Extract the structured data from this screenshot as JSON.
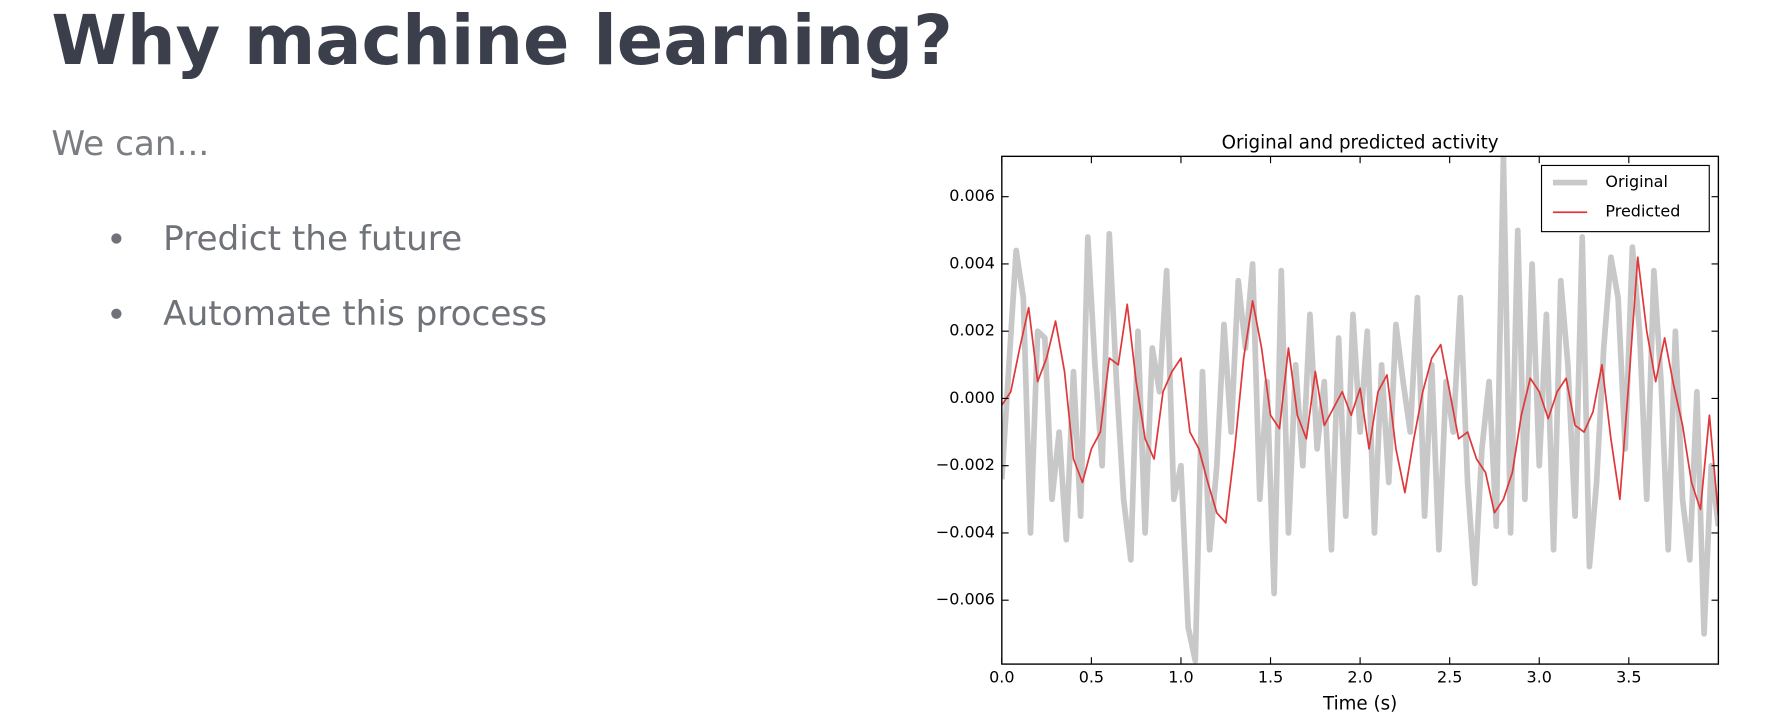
{
  "slide": {
    "title": "Why machine learning?",
    "lead": "We can...",
    "bullets": [
      "Predict the future",
      "Automate this process"
    ]
  },
  "chart_data": {
    "type": "line",
    "title": "Original and predicted activity",
    "x_label": "Time (s)",
    "xlim": [
      0,
      4.0
    ],
    "ylim": [
      -0.0079,
      0.0072
    ],
    "xticks": [
      {
        "value": 0,
        "label": "0.0"
      },
      {
        "value": 0.5,
        "label": "0.5"
      },
      {
        "value": 1,
        "label": "1.0"
      },
      {
        "value": 1.5,
        "label": "1.5"
      },
      {
        "value": 2,
        "label": "2.0"
      },
      {
        "value": 2.5,
        "label": "2.5"
      },
      {
        "value": 3,
        "label": "3.0"
      },
      {
        "value": 3.5,
        "label": "3.5"
      }
    ],
    "yticks": [
      {
        "value": -0.006,
        "label": "−0.006"
      },
      {
        "value": -0.004,
        "label": "−0.004"
      },
      {
        "value": -0.002,
        "label": "−0.002"
      },
      {
        "value": 0,
        "label": "0.000"
      },
      {
        "value": 0.002,
        "label": "0.002"
      },
      {
        "value": 0.004,
        "label": "0.004"
      },
      {
        "value": 0.006,
        "label": "0.006"
      }
    ],
    "legend": "upper right",
    "grid": false,
    "series": [
      {
        "name": "Original",
        "color": "#c8c8c8",
        "width": 5,
        "x": [
          0,
          0.04,
          0.08,
          0.12,
          0.16,
          0.2,
          0.24,
          0.28,
          0.32,
          0.36,
          0.4,
          0.44,
          0.48,
          0.52,
          0.56,
          0.6,
          0.64,
          0.68,
          0.72,
          0.76,
          0.8,
          0.84,
          0.88,
          0.92,
          0.96,
          1,
          1.04,
          1.08,
          1.12,
          1.16,
          1.2,
          1.24,
          1.28,
          1.32,
          1.36,
          1.4,
          1.44,
          1.48,
          1.52,
          1.56,
          1.6,
          1.64,
          1.68,
          1.72,
          1.76,
          1.8,
          1.84,
          1.88,
          1.92,
          1.96,
          2,
          2.04,
          2.08,
          2.12,
          2.16,
          2.2,
          2.24,
          2.28,
          2.32,
          2.36,
          2.4,
          2.44,
          2.48,
          2.52,
          2.56,
          2.6,
          2.64,
          2.68,
          2.72,
          2.76,
          2.8,
          2.84,
          2.88,
          2.92,
          2.96,
          3,
          3.04,
          3.08,
          3.12,
          3.16,
          3.2,
          3.24,
          3.28,
          3.32,
          3.36,
          3.4,
          3.44,
          3.48,
          3.52,
          3.56,
          3.6,
          3.64,
          3.68,
          3.72,
          3.76,
          3.8,
          3.84,
          3.88,
          3.92,
          3.96,
          4
        ],
        "values": [
          -0.0024,
          0.001,
          0.0044,
          0.003,
          -0.004,
          0.002,
          0.0018,
          -0.003,
          -0.001,
          -0.0042,
          0.0008,
          -0.0035,
          0.0048,
          0.001,
          -0.002,
          0.0049,
          0.0005,
          -0.003,
          -0.0048,
          0.002,
          -0.004,
          0.0015,
          0.0002,
          0.0038,
          -0.003,
          -0.002,
          -0.0068,
          -0.0078,
          0.0008,
          -0.0045,
          -0.002,
          0.0022,
          -0.001,
          0.0035,
          0.0015,
          0.004,
          -0.003,
          0.0005,
          -0.0058,
          0.0038,
          -0.004,
          0.001,
          -0.002,
          0.0025,
          -0.0015,
          0.0005,
          -0.0045,
          0.0018,
          -0.0035,
          0.0025,
          -0.001,
          0.002,
          -0.004,
          0.001,
          -0.0025,
          0.0022,
          0.0005,
          -0.001,
          0.003,
          -0.0035,
          0.001,
          -0.0045,
          0.0005,
          -0.001,
          0.003,
          -0.0025,
          -0.0055,
          -0.0015,
          0.0005,
          -0.0038,
          0.0072,
          -0.004,
          0.005,
          -0.003,
          0.004,
          -0.002,
          0.0025,
          -0.0045,
          0.0035,
          0.001,
          -0.0035,
          0.0048,
          -0.005,
          -0.0025,
          0.0015,
          0.0042,
          0.003,
          -0.0015,
          0.0045,
          0.002,
          -0.003,
          0.0038,
          0.0005,
          -0.0045,
          0.002,
          -0.003,
          -0.0048,
          0.0002,
          -0.007,
          -0.002,
          -0.0038
        ]
      },
      {
        "name": "Predicted",
        "color": "#e0383a",
        "width": 1.5,
        "x": [
          0,
          0.05,
          0.1,
          0.15,
          0.2,
          0.25,
          0.3,
          0.35,
          0.4,
          0.45,
          0.5,
          0.55,
          0.6,
          0.65,
          0.7,
          0.75,
          0.8,
          0.85,
          0.9,
          0.95,
          1,
          1.05,
          1.1,
          1.15,
          1.2,
          1.25,
          1.3,
          1.35,
          1.4,
          1.45,
          1.5,
          1.55,
          1.6,
          1.65,
          1.7,
          1.75,
          1.8,
          1.85,
          1.9,
          1.95,
          2,
          2.05,
          2.1,
          2.15,
          2.2,
          2.25,
          2.3,
          2.35,
          2.4,
          2.45,
          2.5,
          2.55,
          2.6,
          2.65,
          2.7,
          2.75,
          2.8,
          2.85,
          2.9,
          2.95,
          3,
          3.05,
          3.1,
          3.15,
          3.2,
          3.25,
          3.3,
          3.35,
          3.4,
          3.45,
          3.5,
          3.55,
          3.6,
          3.65,
          3.7,
          3.75,
          3.8,
          3.85,
          3.9,
          3.95,
          4
        ],
        "values": [
          -0.0002,
          0.0002,
          0.0015,
          0.0027,
          0.0005,
          0.0012,
          0.0023,
          0.0008,
          -0.0018,
          -0.0025,
          -0.0015,
          -0.001,
          0.0012,
          0.001,
          0.0028,
          0.0005,
          -0.0012,
          -0.0018,
          0.0002,
          0.0008,
          0.0012,
          -0.001,
          -0.0015,
          -0.0025,
          -0.0034,
          -0.0037,
          -0.0015,
          0.0012,
          0.0029,
          0.0015,
          -0.0005,
          -0.0009,
          0.0015,
          -0.0005,
          -0.0012,
          0.0008,
          -0.0008,
          -0.0003,
          0.0002,
          -0.0005,
          0.0003,
          -0.0015,
          0.0002,
          0.0007,
          -0.0015,
          -0.0028,
          -0.0012,
          0.0002,
          0.0012,
          0.0016,
          0.0002,
          -0.0012,
          -0.001,
          -0.0018,
          -0.0022,
          -0.0034,
          -0.003,
          -0.0022,
          -0.0005,
          0.0006,
          0.0002,
          -0.0006,
          0.0002,
          0.0006,
          -0.0008,
          -0.001,
          -0.0004,
          0.001,
          -0.0012,
          -0.003,
          0.0005,
          0.0042,
          0.002,
          0.0005,
          0.0018,
          0.0004,
          -0.0008,
          -0.0025,
          -0.0033,
          -0.0005,
          -0.0035
        ]
      }
    ]
  }
}
